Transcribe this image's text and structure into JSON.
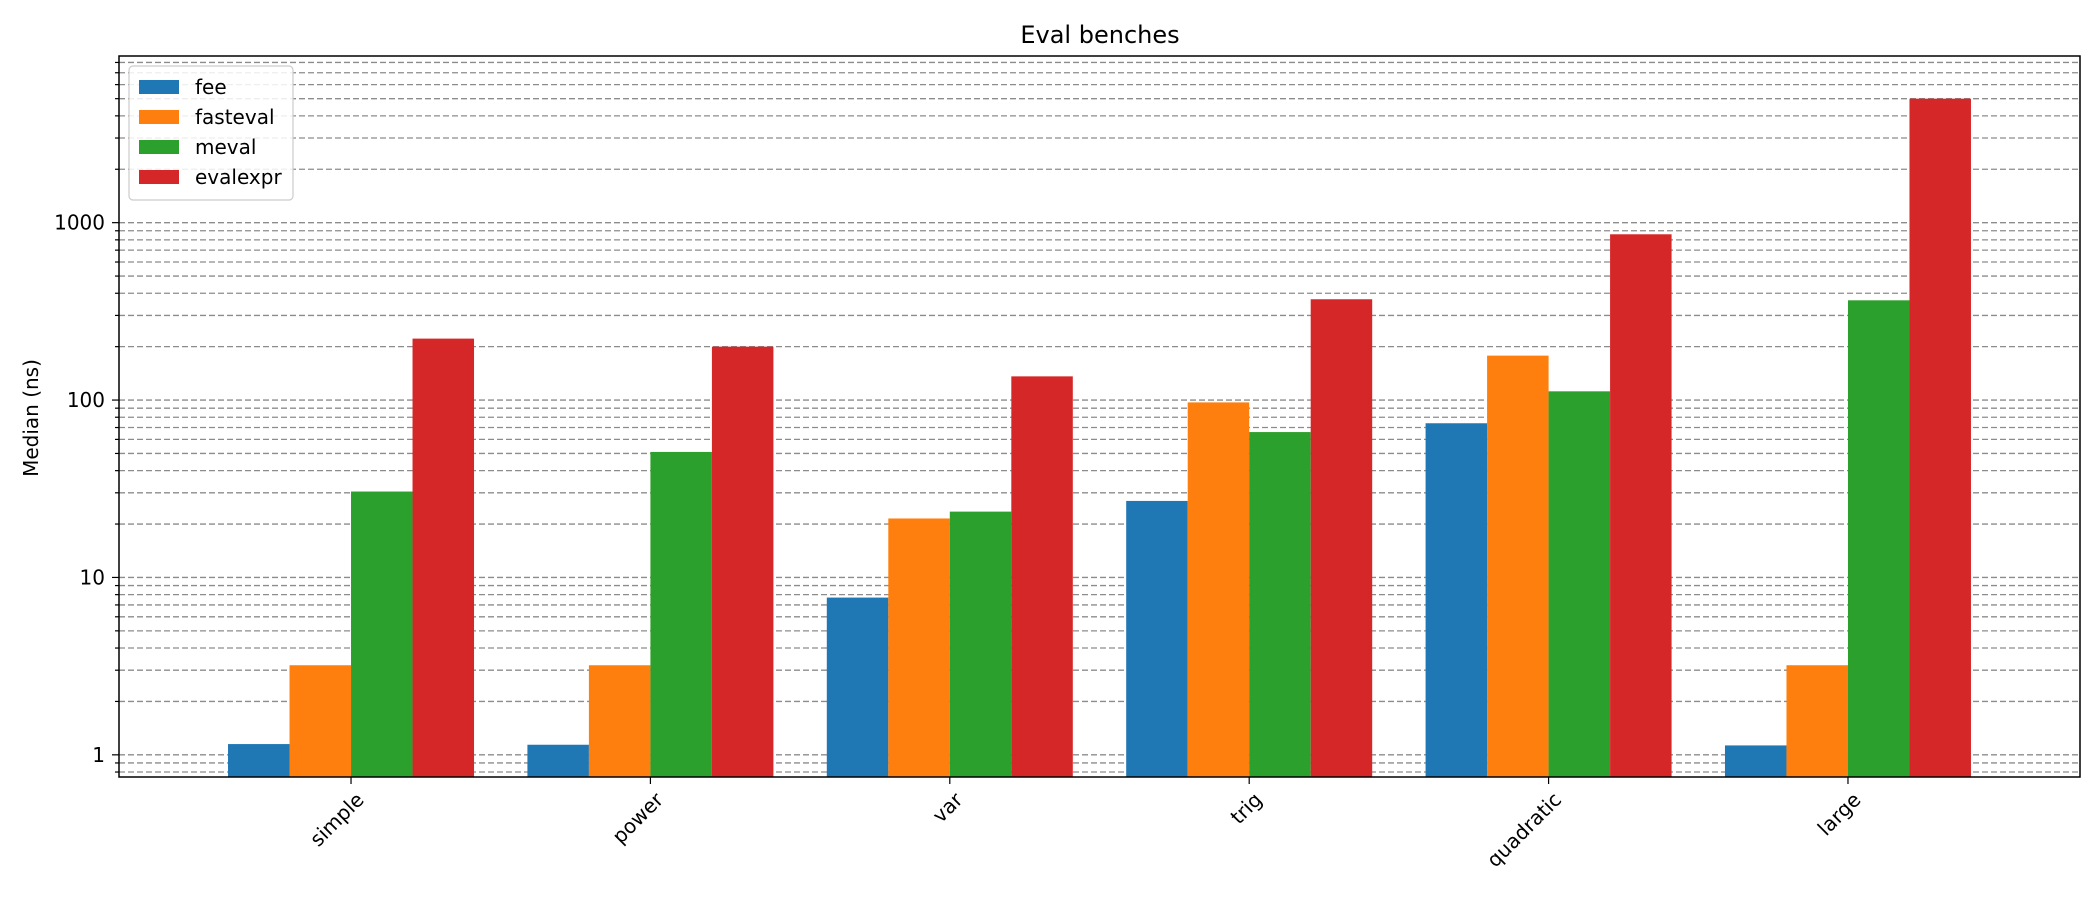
{
  "chart_data": {
    "type": "bar",
    "title": "Eval benches",
    "xlabel": "",
    "ylabel": "Median (ns)",
    "yscale": "log",
    "ylim": [
      0.75,
      8700
    ],
    "yticks": [
      1,
      10,
      100,
      1000
    ],
    "ytick_labels": [
      "1",
      "10",
      "100",
      "1000"
    ],
    "grid": "y-major-and-minor-dashed",
    "legend_position": "top-left",
    "categories": [
      "simple",
      "power",
      "var",
      "trig",
      "quadratic",
      "large"
    ],
    "series": [
      {
        "name": "fee",
        "color": "#1f77b4",
        "values": [
          1.15,
          1.14,
          7.7,
          27,
          74,
          1.13
        ]
      },
      {
        "name": "fasteval",
        "color": "#ff7f0e",
        "values": [
          3.2,
          3.2,
          21.5,
          97,
          178,
          3.2
        ]
      },
      {
        "name": "meval",
        "color": "#2ca02c",
        "values": [
          30.5,
          51,
          23.5,
          66,
          112,
          365
        ]
      },
      {
        "name": "evalexpr",
        "color": "#d62728",
        "values": [
          222,
          200,
          136,
          370,
          860,
          5000
        ]
      }
    ]
  }
}
